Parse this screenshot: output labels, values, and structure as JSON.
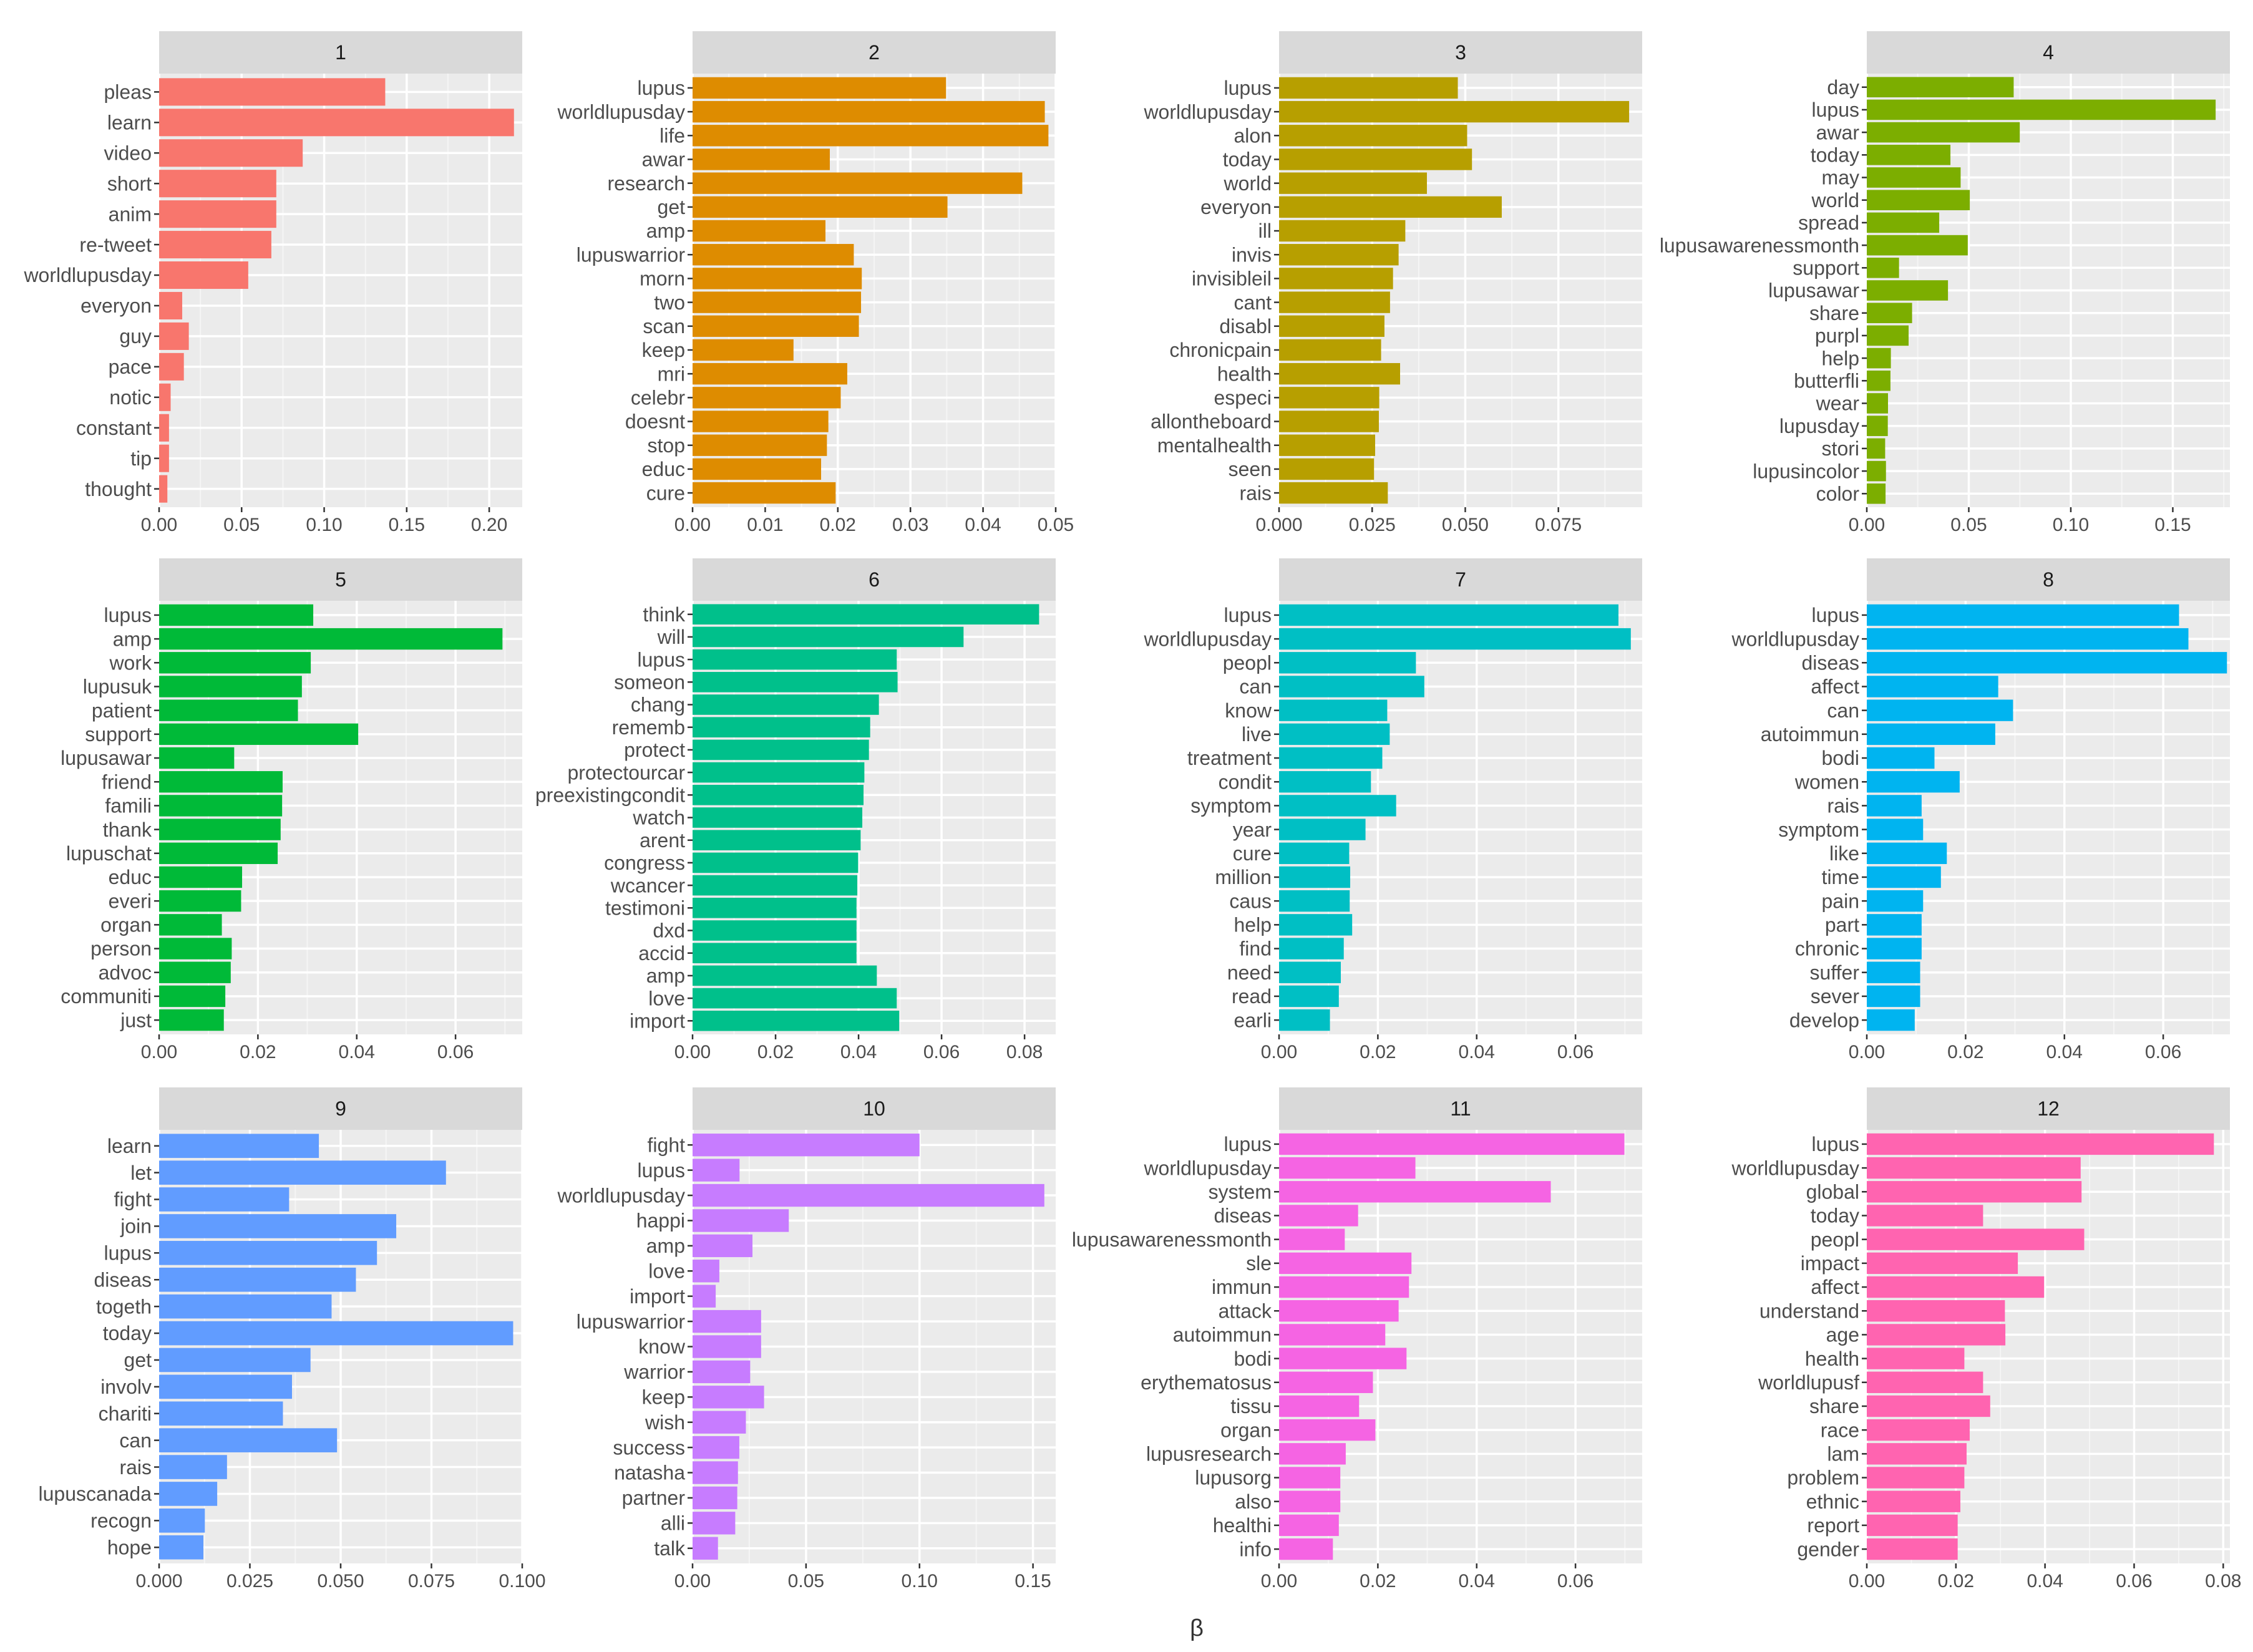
{
  "figure": {
    "xlabel": "β"
  },
  "chart_data": [
    {
      "type": "bar",
      "orientation": "horizontal",
      "title": "1",
      "color": "#F8766D",
      "xlim": [
        0,
        0.22
      ],
      "ticks": [
        0,
        0.05,
        0.1,
        0.15,
        0.2
      ],
      "tick_labels": [
        "0.00",
        "0.05",
        "0.10",
        "0.15",
        "0.20"
      ],
      "categories": [
        "pleas",
        "learn",
        "video",
        "short",
        "anim",
        "re-tweet",
        "worldlupusday",
        "everyon",
        "guy",
        "pace",
        "notic",
        "constant",
        "tip",
        "thought"
      ],
      "values": [
        0.137,
        0.215,
        0.087,
        0.071,
        0.071,
        0.068,
        0.054,
        0.014,
        0.018,
        0.015,
        0.007,
        0.006,
        0.006,
        0.005
      ]
    },
    {
      "type": "bar",
      "orientation": "horizontal",
      "title": "2",
      "color": "#DE8C00",
      "xlim": [
        0,
        0.05
      ],
      "ticks": [
        0,
        0.01,
        0.02,
        0.03,
        0.04,
        0.05
      ],
      "tick_labels": [
        "0.00",
        "0.01",
        "0.02",
        "0.03",
        "0.04",
        "0.05"
      ],
      "categories": [
        "lupus",
        "worldlupusday",
        "life",
        "awar",
        "research",
        "get",
        "amp",
        "lupuswarrior",
        "morn",
        "two",
        "scan",
        "keep",
        "mri",
        "celebr",
        "doesnt",
        "stop",
        "educ",
        "cure"
      ],
      "values": [
        0.0349,
        0.0485,
        0.049,
        0.0189,
        0.0454,
        0.0351,
        0.0183,
        0.0222,
        0.0233,
        0.0232,
        0.0229,
        0.0139,
        0.0213,
        0.0204,
        0.0187,
        0.0185,
        0.0177,
        0.0197
      ]
    },
    {
      "type": "bar",
      "orientation": "horizontal",
      "title": "3",
      "color": "#B79F00",
      "xlim": [
        0,
        0.0975
      ],
      "ticks": [
        0,
        0.025,
        0.05,
        0.075
      ],
      "tick_labels": [
        "0.000",
        "0.025",
        "0.050",
        "0.075"
      ],
      "categories": [
        "lupus",
        "worldlupusday",
        "alon",
        "today",
        "world",
        "everyon",
        "ill",
        "invis",
        "invisibleil",
        "cant",
        "disabl",
        "chronicpain",
        "health",
        "especi",
        "allontheboard",
        "mentalhealth",
        "seen",
        "rais"
      ],
      "values": [
        0.048,
        0.094,
        0.0505,
        0.0518,
        0.0397,
        0.0598,
        0.0339,
        0.0321,
        0.0306,
        0.0298,
        0.0283,
        0.0274,
        0.0325,
        0.0269,
        0.0268,
        0.0258,
        0.0255,
        0.0292
      ]
    },
    {
      "type": "bar",
      "orientation": "horizontal",
      "title": "4",
      "color": "#7CAE00",
      "xlim": [
        0,
        0.178
      ],
      "ticks": [
        0,
        0.05,
        0.1,
        0.15
      ],
      "tick_labels": [
        "0.00",
        "0.05",
        "0.10",
        "0.15"
      ],
      "categories": [
        "day",
        "lupus",
        "awar",
        "today",
        "may",
        "world",
        "spread",
        "lupusawarenessmonth",
        "support",
        "lupusawar",
        "share",
        "purpl",
        "help",
        "butterfli",
        "wear",
        "lupusday",
        "stori",
        "lupusincolor",
        "color"
      ],
      "values": [
        0.072,
        0.171,
        0.075,
        0.041,
        0.046,
        0.0505,
        0.0355,
        0.0495,
        0.0158,
        0.0398,
        0.0222,
        0.0205,
        0.0118,
        0.0116,
        0.0104,
        0.0103,
        0.009,
        0.0094,
        0.0092
      ]
    },
    {
      "type": "bar",
      "orientation": "horizontal",
      "title": "5",
      "color": "#00BA38",
      "xlim": [
        0,
        0.0735
      ],
      "ticks": [
        0,
        0.02,
        0.04,
        0.06
      ],
      "tick_labels": [
        "0.00",
        "0.02",
        "0.04",
        "0.06"
      ],
      "categories": [
        "lupus",
        "amp",
        "work",
        "lupusuk",
        "patient",
        "support",
        "lupusawar",
        "friend",
        "famili",
        "thank",
        "lupuschat",
        "educ",
        "everi",
        "organ",
        "person",
        "advoc",
        "communiti",
        "just"
      ],
      "values": [
        0.0312,
        0.0695,
        0.0307,
        0.0289,
        0.0281,
        0.0403,
        0.0152,
        0.025,
        0.0249,
        0.0246,
        0.024,
        0.0168,
        0.0166,
        0.0127,
        0.0147,
        0.0145,
        0.0134,
        0.0131
      ]
    },
    {
      "type": "bar",
      "orientation": "horizontal",
      "title": "6",
      "color": "#00C08B",
      "xlim": [
        0,
        0.0875
      ],
      "ticks": [
        0,
        0.02,
        0.04,
        0.06,
        0.08
      ],
      "tick_labels": [
        "0.00",
        "0.02",
        "0.04",
        "0.06",
        "0.08"
      ],
      "categories": [
        "think",
        "will",
        "lupus",
        "someon",
        "chang",
        "rememb",
        "protect",
        "protectourcar",
        "preexistingcondit",
        "watch",
        "arent",
        "congress",
        "wcancer",
        "testimoni",
        "dxd",
        "accid",
        "amp",
        "love",
        "import"
      ],
      "values": [
        0.0835,
        0.0653,
        0.0492,
        0.0494,
        0.0449,
        0.0428,
        0.0425,
        0.0414,
        0.0412,
        0.0409,
        0.0405,
        0.0399,
        0.0397,
        0.0395,
        0.0395,
        0.0395,
        0.0444,
        0.0492,
        0.0498
      ]
    },
    {
      "type": "bar",
      "orientation": "horizontal",
      "title": "7",
      "color": "#00BFC4",
      "xlim": [
        0,
        0.0735
      ],
      "ticks": [
        0,
        0.02,
        0.04,
        0.06
      ],
      "tick_labels": [
        "0.00",
        "0.02",
        "0.04",
        "0.06"
      ],
      "categories": [
        "lupus",
        "worldlupusday",
        "peopl",
        "can",
        "know",
        "live",
        "treatment",
        "condit",
        "symptom",
        "year",
        "cure",
        "million",
        "caus",
        "help",
        "find",
        "need",
        "read",
        "earli"
      ],
      "values": [
        0.0687,
        0.0712,
        0.0277,
        0.0294,
        0.0219,
        0.0224,
        0.0209,
        0.0186,
        0.0237,
        0.0175,
        0.0142,
        0.0144,
        0.0143,
        0.0148,
        0.0131,
        0.0125,
        0.0121,
        0.0103
      ]
    },
    {
      "type": "bar",
      "orientation": "horizontal",
      "title": "8",
      "color": "#00B4F0",
      "xlim": [
        0,
        0.0735
      ],
      "ticks": [
        0,
        0.02,
        0.04,
        0.06
      ],
      "tick_labels": [
        "0.00",
        "0.02",
        "0.04",
        "0.06"
      ],
      "categories": [
        "lupus",
        "worldlupusday",
        "diseas",
        "affect",
        "can",
        "autoimmun",
        "bodi",
        "women",
        "rais",
        "symptom",
        "like",
        "time",
        "pain",
        "part",
        "chronic",
        "suffer",
        "sever",
        "develop"
      ],
      "values": [
        0.0632,
        0.0651,
        0.0729,
        0.0266,
        0.0296,
        0.026,
        0.0137,
        0.0188,
        0.0111,
        0.0114,
        0.0162,
        0.015,
        0.0114,
        0.0111,
        0.0111,
        0.0108,
        0.0108,
        0.0097
      ]
    },
    {
      "type": "bar",
      "orientation": "horizontal",
      "title": "9",
      "color": "#619CFF",
      "xlim": [
        0,
        0.1
      ],
      "ticks": [
        0,
        0.025,
        0.05,
        0.075,
        0.1
      ],
      "tick_labels": [
        "0.000",
        "0.025",
        "0.050",
        "0.075",
        "0.100"
      ],
      "categories": [
        "learn",
        "let",
        "fight",
        "join",
        "lupus",
        "diseas",
        "togeth",
        "today",
        "get",
        "involv",
        "chariti",
        "can",
        "rais",
        "lupuscanada",
        "recogn",
        "hope"
      ],
      "values": [
        0.044,
        0.079,
        0.0358,
        0.0653,
        0.06,
        0.0542,
        0.0475,
        0.0975,
        0.0417,
        0.0366,
        0.0341,
        0.049,
        0.0187,
        0.016,
        0.0126,
        0.0122
      ]
    },
    {
      "type": "bar",
      "orientation": "horizontal",
      "title": "10",
      "color": "#C77CFF",
      "xlim": [
        0,
        0.16
      ],
      "ticks": [
        0,
        0.05,
        0.1,
        0.15
      ],
      "tick_labels": [
        "0.00",
        "0.05",
        "0.10",
        "0.15"
      ],
      "categories": [
        "fight",
        "lupus",
        "worldlupusday",
        "happi",
        "amp",
        "love",
        "import",
        "lupuswarrior",
        "know",
        "warrior",
        "keep",
        "wish",
        "success",
        "natasha",
        "partner",
        "alli",
        "talk"
      ],
      "values": [
        0.1,
        0.0207,
        0.155,
        0.0424,
        0.0264,
        0.0118,
        0.0102,
        0.0302,
        0.0302,
        0.0254,
        0.0315,
        0.0235,
        0.0206,
        0.02,
        0.0197,
        0.0188,
        0.0112
      ]
    },
    {
      "type": "bar",
      "orientation": "horizontal",
      "title": "11",
      "color": "#F564E3",
      "xlim": [
        0,
        0.0735
      ],
      "ticks": [
        0,
        0.02,
        0.04,
        0.06
      ],
      "tick_labels": [
        "0.00",
        "0.02",
        "0.04",
        "0.06"
      ],
      "categories": [
        "lupus",
        "worldlupusday",
        "system",
        "diseas",
        "lupusawarenessmonth",
        "sle",
        "immun",
        "attack",
        "autoimmun",
        "bodi",
        "erythematosus",
        "tissu",
        "organ",
        "lupusresearch",
        "lupusorg",
        "also",
        "healthi",
        "info"
      ],
      "values": [
        0.0699,
        0.0276,
        0.055,
        0.016,
        0.0133,
        0.0268,
        0.0263,
        0.0242,
        0.0215,
        0.0258,
        0.019,
        0.0162,
        0.0195,
        0.0135,
        0.0124,
        0.0124,
        0.0121,
        0.0109
      ]
    },
    {
      "type": "bar",
      "orientation": "horizontal",
      "title": "12",
      "color": "#FF64B0",
      "xlim": [
        0,
        0.0815
      ],
      "ticks": [
        0,
        0.02,
        0.04,
        0.06,
        0.08
      ],
      "tick_labels": [
        "0.00",
        "0.02",
        "0.04",
        "0.06",
        "0.08"
      ],
      "categories": [
        "lupus",
        "worldlupusday",
        "global",
        "today",
        "peopl",
        "impact",
        "affect",
        "understand",
        "age",
        "health",
        "worldlupusf",
        "share",
        "race",
        "lam",
        "problem",
        "ethnic",
        "report",
        "gender"
      ],
      "values": [
        0.0779,
        0.048,
        0.0482,
        0.0261,
        0.0488,
        0.0339,
        0.0398,
        0.031,
        0.0311,
        0.0219,
        0.0261,
        0.0277,
        0.0231,
        0.0224,
        0.0219,
        0.021,
        0.0204,
        0.0204
      ]
    }
  ]
}
